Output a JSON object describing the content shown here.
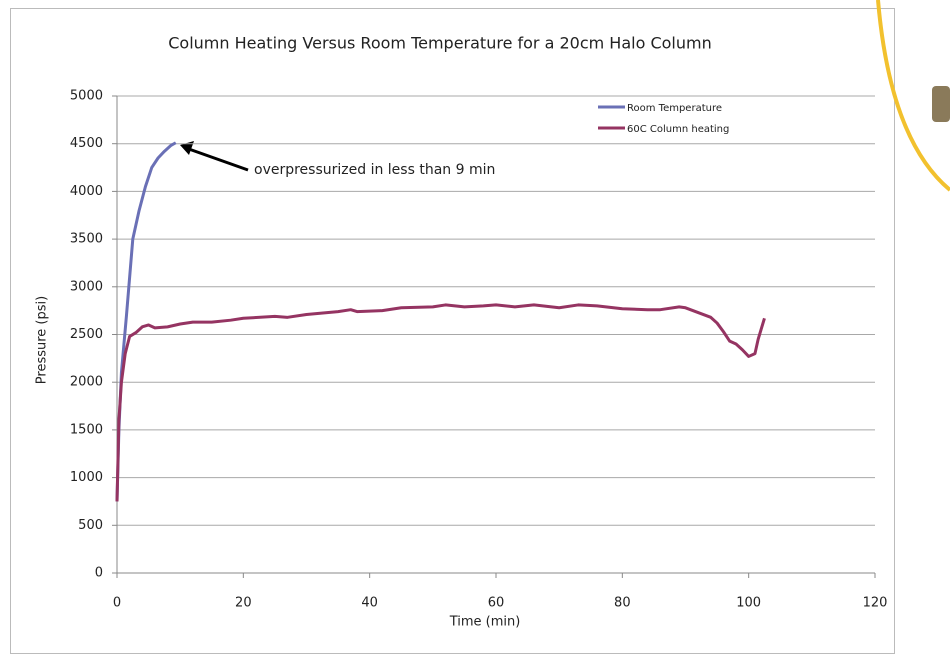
{
  "chart_data": {
    "type": "line",
    "title": "Column Heating Versus Room Temperature for a 20cm Halo Column",
    "x_label": "Time (min)",
    "y_label": "Pressure (psi)",
    "annotation": "overpressurized in less than 9 min",
    "xlim": [
      0,
      120
    ],
    "xticks": [
      0,
      20,
      40,
      60,
      80,
      100,
      120
    ],
    "ylim": [
      0,
      5000
    ],
    "yticks": [
      0,
      500,
      1000,
      1500,
      2000,
      2500,
      3000,
      3500,
      4000,
      4500,
      5000
    ],
    "grid": true,
    "legend": "top-right",
    "series": [
      {
        "name": "Room Temperature",
        "color": "#6a70b6",
        "x": [
          0,
          0.3,
          0.7,
          1.5,
          2.5,
          3.5,
          4.5,
          5.5,
          6.5,
          7.5,
          8.5,
          9.3
        ],
        "values": [
          750,
          1500,
          2100,
          2700,
          3500,
          3800,
          4050,
          4250,
          4350,
          4420,
          4480,
          4510
        ]
      },
      {
        "name": "60C Column heating",
        "color": "#953462",
        "x": [
          0,
          0.3,
          0.7,
          1.3,
          2,
          3,
          4,
          5,
          6,
          8,
          10,
          12,
          15,
          18,
          20,
          25,
          27,
          30,
          35,
          37,
          38,
          42,
          45,
          50,
          52,
          55,
          58,
          60,
          63,
          66,
          70,
          73,
          76,
          80,
          84,
          86,
          89,
          90,
          92,
          94,
          95,
          96,
          97,
          98,
          99,
          100,
          101,
          101.5,
          102.5
        ],
        "values": [
          750,
          1600,
          2000,
          2300,
          2480,
          2520,
          2580,
          2600,
          2570,
          2580,
          2610,
          2630,
          2630,
          2650,
          2670,
          2690,
          2680,
          2710,
          2740,
          2760,
          2740,
          2750,
          2780,
          2790,
          2810,
          2790,
          2800,
          2810,
          2790,
          2810,
          2780,
          2810,
          2800,
          2770,
          2760,
          2760,
          2790,
          2780,
          2730,
          2680,
          2620,
          2530,
          2430,
          2400,
          2340,
          2270,
          2300,
          2450,
          2670
        ]
      }
    ]
  }
}
